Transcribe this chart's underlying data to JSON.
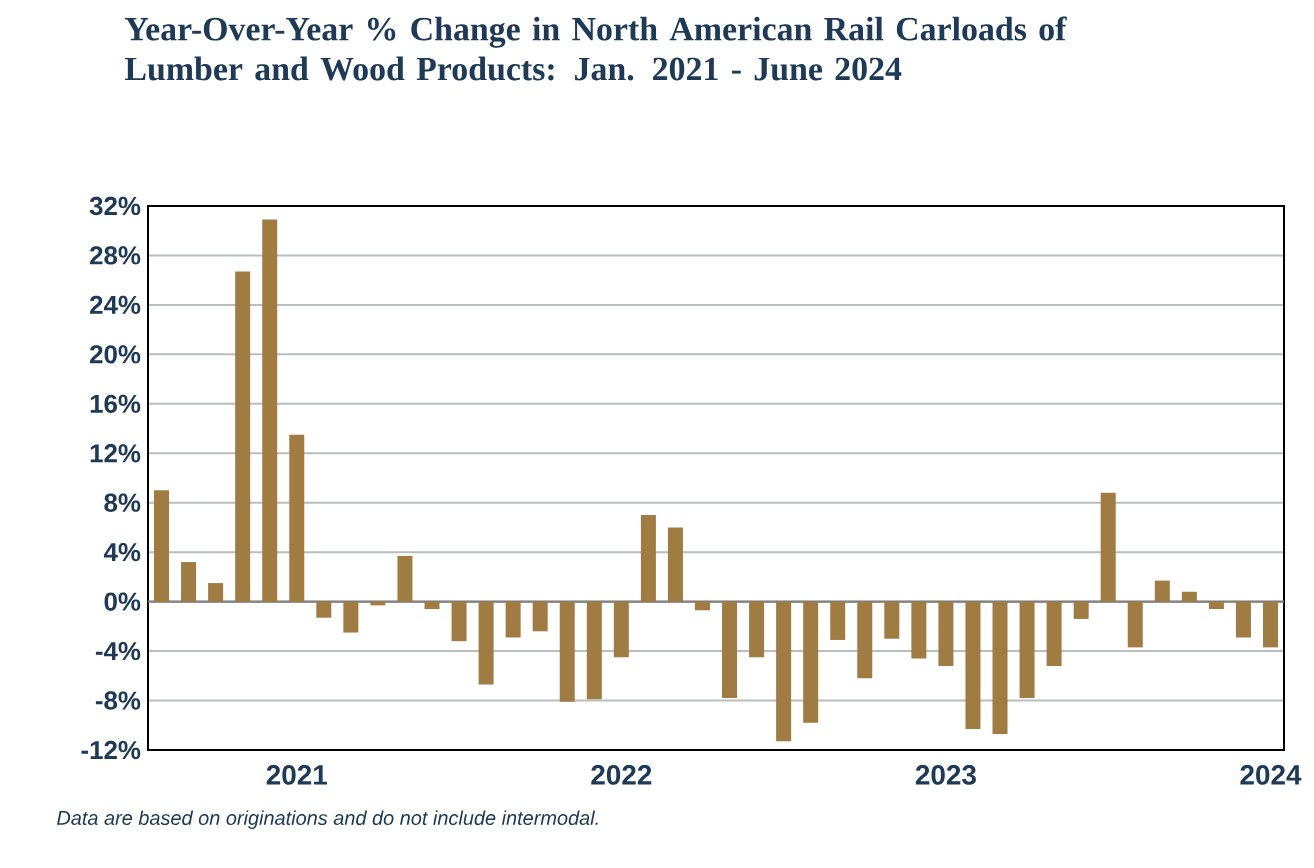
{
  "chart_data": {
    "type": "bar",
    "title": "Year-Over-Year % Change in North American Rail Carloads of Lumber and Wood Products: Jan. 2021 - June 2024",
    "categories": [
      null,
      null,
      null,
      null,
      null,
      "2021",
      null,
      null,
      null,
      null,
      null,
      null,
      null,
      null,
      null,
      null,
      null,
      "2022",
      null,
      null,
      null,
      null,
      null,
      null,
      null,
      null,
      null,
      null,
      null,
      "2023",
      null,
      null,
      null,
      null,
      null,
      null,
      null,
      null,
      null,
      null,
      null,
      "2024"
    ],
    "values": [
      9.0,
      3.2,
      1.5,
      26.7,
      30.9,
      13.5,
      -1.3,
      -2.5,
      -0.3,
      3.7,
      -0.6,
      -3.2,
      -6.7,
      -2.9,
      -2.4,
      -8.1,
      -7.9,
      -4.5,
      7.0,
      6.0,
      -0.7,
      -7.8,
      -4.5,
      -11.3,
      -9.8,
      -3.1,
      -6.2,
      -3.0,
      -4.6,
      -5.2,
      -10.3,
      -10.7,
      -7.8,
      -5.2,
      -1.4,
      8.8,
      -3.7,
      1.7,
      0.8,
      -0.6,
      -2.9,
      -3.7
    ],
    "color": "#a07b42",
    "ylim": [
      -12,
      32
    ],
    "yticks": [
      {
        "value": -12,
        "label": "-12%"
      },
      {
        "value": -8,
        "label": "-8%"
      },
      {
        "value": -4,
        "label": "-4%"
      },
      {
        "value": 0,
        "label": "0%"
      },
      {
        "value": 4,
        "label": "4%"
      },
      {
        "value": 8,
        "label": "8%"
      },
      {
        "value": 12,
        "label": "12%"
      },
      {
        "value": 16,
        "label": "16%"
      },
      {
        "value": 20,
        "label": "20%"
      },
      {
        "value": 24,
        "label": "24%"
      },
      {
        "value": 28,
        "label": "28%"
      },
      {
        "value": 32,
        "label": "32%"
      }
    ],
    "grid": "y",
    "annotations": [
      "Data are based on originations and do not include intermodal."
    ]
  }
}
